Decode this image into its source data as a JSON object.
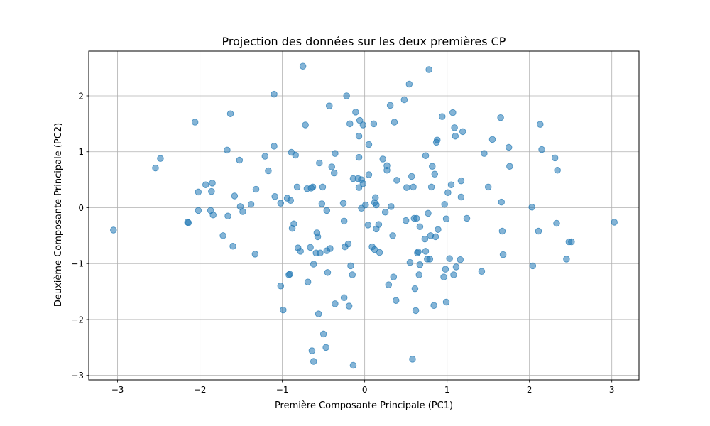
{
  "chart_data": {
    "type": "scatter",
    "title": "Projection des données sur les deux premières CP",
    "xlabel": "Première Composante Principale (PC1)",
    "ylabel": "Deuxième Composante Principale (PC2)",
    "xlim": [
      -3.35,
      3.33
    ],
    "ylim": [
      -3.08,
      2.8
    ],
    "xticks": [
      -3,
      -2,
      -1,
      0,
      1,
      2,
      3
    ],
    "yticks": [
      -3,
      -2,
      -1,
      0,
      1,
      2
    ],
    "xtick_labels": [
      "−3",
      "−2",
      "−1",
      "0",
      "1",
      "2",
      "3"
    ],
    "ytick_labels": [
      "−3",
      "−2",
      "−1",
      "0",
      "1",
      "2"
    ],
    "grid": true,
    "marker_color": "#1f77b4",
    "marker_alpha": 0.55,
    "points": [
      [
        -3.05,
        -0.4
      ],
      [
        -2.54,
        0.71
      ],
      [
        -2.48,
        0.88
      ],
      [
        -2.15,
        -0.26
      ],
      [
        -2.14,
        -0.27
      ],
      [
        -2.06,
        1.53
      ],
      [
        -2.02,
        0.28
      ],
      [
        -2.02,
        -0.05
      ],
      [
        -1.93,
        0.41
      ],
      [
        -1.87,
        -0.05
      ],
      [
        -1.86,
        0.29
      ],
      [
        -1.85,
        0.44
      ],
      [
        -1.84,
        -0.13
      ],
      [
        -1.72,
        -0.5
      ],
      [
        -1.67,
        1.03
      ],
      [
        -1.66,
        -0.15
      ],
      [
        -1.63,
        1.68
      ],
      [
        -1.6,
        -0.69
      ],
      [
        -1.58,
        0.21
      ],
      [
        -1.52,
        0.85
      ],
      [
        -1.51,
        0.02
      ],
      [
        -1.48,
        -0.07
      ],
      [
        -1.38,
        0.06
      ],
      [
        -1.33,
        -0.83
      ],
      [
        -1.32,
        0.33
      ],
      [
        -1.21,
        0.92
      ],
      [
        -1.17,
        0.66
      ],
      [
        -1.1,
        2.03
      ],
      [
        -1.1,
        1.1
      ],
      [
        -1.09,
        0.2
      ],
      [
        -1.02,
        0.08
      ],
      [
        -1.02,
        -1.4
      ],
      [
        -0.99,
        -1.83
      ],
      [
        -0.94,
        0.17
      ],
      [
        -0.92,
        -1.2
      ],
      [
        -0.91,
        -1.19
      ],
      [
        -0.9,
        0.13
      ],
      [
        -0.89,
        0.99
      ],
      [
        -0.88,
        -0.37
      ],
      [
        -0.86,
        -0.29
      ],
      [
        -0.84,
        0.94
      ],
      [
        -0.82,
        0.37
      ],
      [
        -0.81,
        -0.72
      ],
      [
        -0.78,
        -0.78
      ],
      [
        -0.75,
        2.53
      ],
      [
        -0.72,
        1.48
      ],
      [
        -0.7,
        0.34
      ],
      [
        -0.69,
        -1.33
      ],
      [
        -0.66,
        -0.71
      ],
      [
        -0.65,
        0.35
      ],
      [
        -0.64,
        -2.56
      ],
      [
        -0.63,
        0.37
      ],
      [
        -0.62,
        -2.75
      ],
      [
        -0.62,
        -1.01
      ],
      [
        -0.59,
        -0.81
      ],
      [
        -0.58,
        -0.45
      ],
      [
        -0.57,
        -0.52
      ],
      [
        -0.56,
        -1.9
      ],
      [
        -0.55,
        0.8
      ],
      [
        -0.54,
        -0.81
      ],
      [
        -0.52,
        0.07
      ],
      [
        -0.51,
        0.37
      ],
      [
        -0.5,
        -2.26
      ],
      [
        -0.47,
        -2.5
      ],
      [
        -0.46,
        -0.05
      ],
      [
        -0.46,
        -0.77
      ],
      [
        -0.45,
        -1.16
      ],
      [
        -0.43,
        1.82
      ],
      [
        -0.42,
        -0.73
      ],
      [
        -0.4,
        0.73
      ],
      [
        -0.37,
        0.62
      ],
      [
        -0.36,
        0.97
      ],
      [
        -0.36,
        -1.72
      ],
      [
        -0.26,
        0.08
      ],
      [
        -0.25,
        -0.24
      ],
      [
        -0.25,
        -1.61
      ],
      [
        -0.24,
        -0.7
      ],
      [
        -0.22,
        2.0
      ],
      [
        -0.2,
        -0.65
      ],
      [
        -0.19,
        -1.76
      ],
      [
        -0.18,
        1.5
      ],
      [
        -0.17,
        -1.04
      ],
      [
        -0.15,
        -1.2
      ],
      [
        -0.14,
        -2.82
      ],
      [
        -0.14,
        0.52
      ],
      [
        -0.11,
        1.71
      ],
      [
        -0.08,
        0.52
      ],
      [
        -0.07,
        1.28
      ],
      [
        -0.07,
        0.9
      ],
      [
        -0.07,
        0.36
      ],
      [
        -0.06,
        1.56
      ],
      [
        -0.04,
        0.5
      ],
      [
        -0.04,
        -0.01
      ],
      [
        -0.02,
        1.48
      ],
      [
        -0.02,
        0.43
      ],
      [
        0.01,
        0.05
      ],
      [
        0.04,
        -0.31
      ],
      [
        0.05,
        0.59
      ],
      [
        0.05,
        1.13
      ],
      [
        0.09,
        -0.7
      ],
      [
        0.11,
        1.5
      ],
      [
        0.12,
        0.09
      ],
      [
        0.12,
        -0.75
      ],
      [
        0.13,
        0.18
      ],
      [
        0.14,
        0.05
      ],
      [
        0.14,
        -0.38
      ],
      [
        0.17,
        -0.3
      ],
      [
        0.18,
        -0.8
      ],
      [
        0.22,
        0.87
      ],
      [
        0.25,
        -0.08
      ],
      [
        0.27,
        0.67
      ],
      [
        0.27,
        0.75
      ],
      [
        0.29,
        -1.38
      ],
      [
        0.31,
        1.83
      ],
      [
        0.32,
        0.02
      ],
      [
        0.34,
        -0.5
      ],
      [
        0.35,
        -1.24
      ],
      [
        0.36,
        1.53
      ],
      [
        0.38,
        -1.66
      ],
      [
        0.39,
        0.49
      ],
      [
        0.48,
        1.93
      ],
      [
        0.5,
        -0.23
      ],
      [
        0.51,
        0.36
      ],
      [
        0.54,
        2.21
      ],
      [
        0.55,
        -0.98
      ],
      [
        0.57,
        0.56
      ],
      [
        0.58,
        -2.71
      ],
      [
        0.59,
        0.37
      ],
      [
        0.6,
        -0.19
      ],
      [
        0.61,
        -1.45
      ],
      [
        0.62,
        -1.84
      ],
      [
        0.63,
        -0.19
      ],
      [
        0.64,
        -0.81
      ],
      [
        0.65,
        -0.79
      ],
      [
        0.66,
        -1.2
      ],
      [
        0.67,
        -1.02
      ],
      [
        0.67,
        -0.34
      ],
      [
        0.73,
        -0.56
      ],
      [
        0.74,
        -0.78
      ],
      [
        0.74,
        0.93
      ],
      [
        0.76,
        -0.92
      ],
      [
        0.77,
        -0.1
      ],
      [
        0.78,
        2.47
      ],
      [
        0.79,
        -0.92
      ],
      [
        0.8,
        -0.5
      ],
      [
        0.81,
        0.37
      ],
      [
        0.82,
        0.74
      ],
      [
        0.84,
        -1.75
      ],
      [
        0.85,
        0.6
      ],
      [
        0.86,
        -0.52
      ],
      [
        0.87,
        1.17
      ],
      [
        0.88,
        1.21
      ],
      [
        0.89,
        -0.39
      ],
      [
        0.94,
        1.63
      ],
      [
        0.96,
        -1.24
      ],
      [
        0.97,
        0.06
      ],
      [
        0.98,
        -1.1
      ],
      [
        0.99,
        -1.69
      ],
      [
        0.99,
        -0.2
      ],
      [
        1.01,
        0.27
      ],
      [
        1.03,
        -0.91
      ],
      [
        1.05,
        0.41
      ],
      [
        1.07,
        1.7
      ],
      [
        1.08,
        -1.2
      ],
      [
        1.09,
        1.43
      ],
      [
        1.1,
        1.28
      ],
      [
        1.11,
        -1.06
      ],
      [
        1.16,
        -0.93
      ],
      [
        1.17,
        0.19
      ],
      [
        1.17,
        0.48
      ],
      [
        1.19,
        1.36
      ],
      [
        1.24,
        -0.19
      ],
      [
        1.42,
        -1.14
      ],
      [
        1.45,
        0.97
      ],
      [
        1.5,
        0.37
      ],
      [
        1.55,
        1.22
      ],
      [
        1.65,
        1.61
      ],
      [
        1.66,
        0.1
      ],
      [
        1.67,
        -0.42
      ],
      [
        1.68,
        -0.84
      ],
      [
        1.75,
        1.08
      ],
      [
        1.76,
        0.74
      ],
      [
        2.03,
        0.01
      ],
      [
        2.04,
        -1.04
      ],
      [
        2.11,
        -0.42
      ],
      [
        2.13,
        1.49
      ],
      [
        2.15,
        1.04
      ],
      [
        2.31,
        0.89
      ],
      [
        2.33,
        -0.28
      ],
      [
        2.34,
        0.67
      ],
      [
        2.45,
        -0.92
      ],
      [
        2.48,
        -0.61
      ],
      [
        2.51,
        -0.61
      ],
      [
        3.03,
        -0.26
      ]
    ]
  }
}
